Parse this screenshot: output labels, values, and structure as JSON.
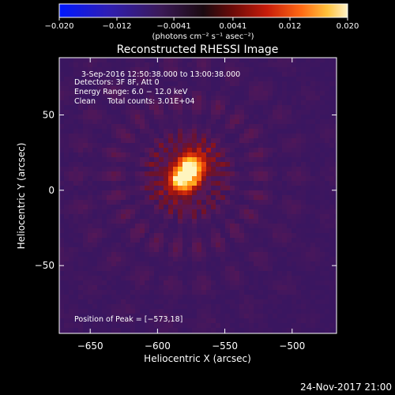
{
  "chart_data": {
    "type": "heatmap",
    "title": "Reconstructed RHESSI Image",
    "xlabel": "Heliocentric X (arcsec)",
    "ylabel": "Heliocentric Y (arcsec)",
    "xlim": [
      -673,
      -467
    ],
    "ylim": [
      -95,
      88
    ],
    "x_ticks": [
      -650,
      -600,
      -550,
      -500
    ],
    "x_tick_labels": [
      "−650",
      "−600",
      "−550",
      "−500"
    ],
    "y_ticks": [
      50,
      0,
      -50
    ],
    "y_tick_labels": [
      "50",
      "0",
      "−50"
    ],
    "colorbar": {
      "range": [
        -0.02,
        0.02
      ],
      "ticks": [
        -0.02,
        -0.012,
        -0.0041,
        0.0041,
        0.012,
        0.02
      ],
      "tick_labels": [
        "−0.020",
        "−0.012",
        "−0.0041",
        "0.0041",
        "0.012",
        "0.020"
      ],
      "unit_label": "(photons cm⁻² s⁻¹ asec⁻²)"
    },
    "annotations": [
      "3-Sep-2016 12:50:38.000 to 13:00:38.000",
      "Detectors: 3F 8F, Att 0",
      "Energy Range: 6.0 − 12.0 keV",
      "Clean     Total counts: 3.01E+04"
    ],
    "peak_label": "Position of Peak = [−573,18]",
    "peak": [
      -573,
      18
    ],
    "sources": [
      {
        "x": -574,
        "y": 16,
        "intensity": 1.0
      },
      {
        "x": -583,
        "y": 6,
        "intensity": 0.9
      }
    ]
  },
  "footer": {
    "date": "24-Nov-2017 21:00"
  }
}
